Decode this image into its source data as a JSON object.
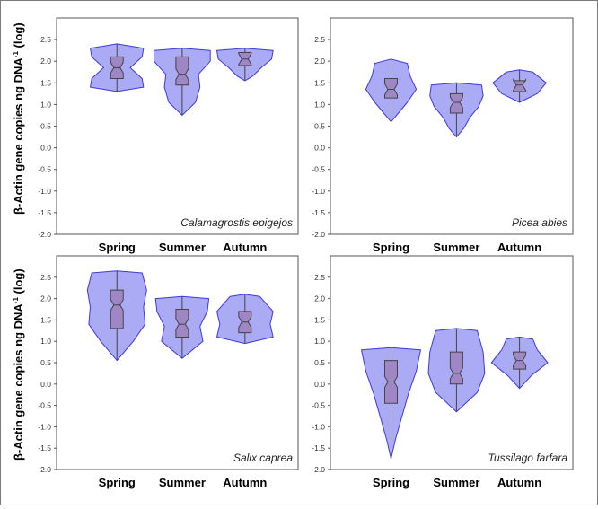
{
  "y_axis_label_main": "β-Actin gene copies ng DNA",
  "y_axis_label_sup": "-1",
  "y_axis_label_tail": " (log)",
  "violin_fill": "#aaaaf5",
  "violin_stroke": "#3b3bdd",
  "box_fill": "#9f86c4",
  "chart_data": [
    {
      "type": "violin",
      "species": "Calamagrostis epigejos",
      "categories": [
        "Spring",
        "Summer",
        "Autumn"
      ],
      "ylim": [
        -2.0,
        3.0
      ],
      "yticks": [
        "2.5",
        "2.0",
        "1.5",
        "1.0",
        "0.5",
        "0.0",
        "-0.5",
        "-1.0",
        "-1.5",
        "-2.0"
      ],
      "series": [
        {
          "category": "Spring",
          "min": 1.3,
          "q1": 1.6,
          "median": 1.85,
          "q3": 2.1,
          "max": 2.4,
          "profile": [
            [
              2.4,
              0.0
            ],
            [
              2.3,
              0.9
            ],
            [
              2.1,
              0.85
            ],
            [
              1.85,
              0.45
            ],
            [
              1.6,
              0.85
            ],
            [
              1.4,
              0.9
            ],
            [
              1.3,
              0.0
            ]
          ]
        },
        {
          "category": "Summer",
          "min": 0.75,
          "q1": 1.45,
          "median": 1.7,
          "q3": 2.1,
          "max": 2.3,
          "profile": [
            [
              2.3,
              0.0
            ],
            [
              2.25,
              0.95
            ],
            [
              2.0,
              0.95
            ],
            [
              1.7,
              0.55
            ],
            [
              1.4,
              0.6
            ],
            [
              1.05,
              0.45
            ],
            [
              0.75,
              0.0
            ]
          ]
        },
        {
          "category": "Autumn",
          "min": 1.55,
          "q1": 1.9,
          "median": 2.05,
          "q3": 2.2,
          "max": 2.3,
          "profile": [
            [
              2.3,
              0.0
            ],
            [
              2.25,
              0.95
            ],
            [
              2.05,
              0.9
            ],
            [
              1.85,
              0.55
            ],
            [
              1.65,
              0.25
            ],
            [
              1.55,
              0.0
            ]
          ]
        }
      ]
    },
    {
      "type": "violin",
      "species": "Picea abies",
      "categories": [
        "Spring",
        "Summer",
        "Autumn"
      ],
      "ylim": [
        -2.0,
        3.0
      ],
      "yticks": [
        "2.5",
        "2.0",
        "1.5",
        "1.0",
        "0.5",
        "0.0",
        "-0.5",
        "-1.0",
        "-1.5",
        "-2.0"
      ],
      "series": [
        {
          "category": "Spring",
          "min": 0.6,
          "q1": 1.15,
          "median": 1.35,
          "q3": 1.6,
          "max": 2.05,
          "profile": [
            [
              2.05,
              0.0
            ],
            [
              1.95,
              0.55
            ],
            [
              1.65,
              0.65
            ],
            [
              1.35,
              0.85
            ],
            [
              1.05,
              0.55
            ],
            [
              0.8,
              0.25
            ],
            [
              0.6,
              0.0
            ]
          ]
        },
        {
          "category": "Summer",
          "min": 0.25,
          "q1": 0.8,
          "median": 1.05,
          "q3": 1.25,
          "max": 1.5,
          "profile": [
            [
              1.5,
              0.0
            ],
            [
              1.45,
              0.85
            ],
            [
              1.2,
              0.9
            ],
            [
              0.95,
              0.75
            ],
            [
              0.7,
              0.45
            ],
            [
              0.45,
              0.25
            ],
            [
              0.25,
              0.0
            ]
          ]
        },
        {
          "category": "Autumn",
          "min": 1.05,
          "q1": 1.3,
          "median": 1.45,
          "q3": 1.55,
          "max": 1.8,
          "profile": [
            [
              1.8,
              0.0
            ],
            [
              1.75,
              0.45
            ],
            [
              1.5,
              0.9
            ],
            [
              1.25,
              0.6
            ],
            [
              1.05,
              0.0
            ]
          ]
        }
      ]
    },
    {
      "type": "violin",
      "species": "Salix caprea",
      "categories": [
        "Spring",
        "Summer",
        "Autumn"
      ],
      "ylim": [
        -2.0,
        3.0
      ],
      "yticks": [
        "2.5",
        "2.0",
        "1.5",
        "1.0",
        "0.5",
        "0.0",
        "-0.5",
        "-1.0",
        "-1.5",
        "-2.0"
      ],
      "series": [
        {
          "category": "Spring",
          "min": 0.55,
          "q1": 1.3,
          "median": 1.85,
          "q3": 2.2,
          "max": 2.65,
          "profile": [
            [
              2.65,
              0.0
            ],
            [
              2.6,
              0.85
            ],
            [
              2.2,
              1.0
            ],
            [
              1.8,
              0.9
            ],
            [
              1.4,
              0.95
            ],
            [
              1.0,
              0.55
            ],
            [
              0.55,
              0.0
            ]
          ]
        },
        {
          "category": "Summer",
          "min": 0.6,
          "q1": 1.1,
          "median": 1.4,
          "q3": 1.75,
          "max": 2.05,
          "profile": [
            [
              2.05,
              0.0
            ],
            [
              2.0,
              0.9
            ],
            [
              1.7,
              0.85
            ],
            [
              1.35,
              0.6
            ],
            [
              1.0,
              0.7
            ],
            [
              0.6,
              0.0
            ]
          ]
        },
        {
          "category": "Autumn",
          "min": 0.95,
          "q1": 1.2,
          "median": 1.45,
          "q3": 1.7,
          "max": 2.1,
          "profile": [
            [
              2.1,
              0.0
            ],
            [
              2.05,
              0.5
            ],
            [
              1.7,
              0.95
            ],
            [
              1.4,
              0.85
            ],
            [
              1.1,
              0.95
            ],
            [
              0.95,
              0.0
            ]
          ]
        }
      ]
    },
    {
      "type": "violin",
      "species": "Tussilago farfara",
      "categories": [
        "Spring",
        "Summer",
        "Autumn"
      ],
      "ylim": [
        -2.0,
        3.0
      ],
      "yticks": [
        "2.5",
        "2.0",
        "1.5",
        "1.0",
        "0.5",
        "0.0",
        "-0.5",
        "-1.0",
        "-1.5",
        "-2.0"
      ],
      "series": [
        {
          "category": "Spring",
          "min": -1.75,
          "q1": -0.45,
          "median": 0.05,
          "q3": 0.55,
          "max": 0.85,
          "profile": [
            [
              0.85,
              0.0
            ],
            [
              0.8,
              1.0
            ],
            [
              0.3,
              0.85
            ],
            [
              -0.2,
              0.6
            ],
            [
              -0.8,
              0.35
            ],
            [
              -1.3,
              0.15
            ],
            [
              -1.75,
              0.0
            ]
          ]
        },
        {
          "category": "Summer",
          "min": -0.65,
          "q1": 0.0,
          "median": 0.25,
          "q3": 0.75,
          "max": 1.3,
          "profile": [
            [
              1.3,
              0.0
            ],
            [
              1.25,
              0.7
            ],
            [
              0.75,
              0.9
            ],
            [
              0.25,
              0.95
            ],
            [
              -0.2,
              0.7
            ],
            [
              -0.65,
              0.0
            ]
          ]
        },
        {
          "category": "Autumn",
          "min": -0.1,
          "q1": 0.35,
          "median": 0.55,
          "q3": 0.75,
          "max": 1.1,
          "profile": [
            [
              1.1,
              0.0
            ],
            [
              1.05,
              0.45
            ],
            [
              0.8,
              0.6
            ],
            [
              0.5,
              0.95
            ],
            [
              0.2,
              0.4
            ],
            [
              -0.1,
              0.0
            ]
          ]
        }
      ]
    }
  ]
}
